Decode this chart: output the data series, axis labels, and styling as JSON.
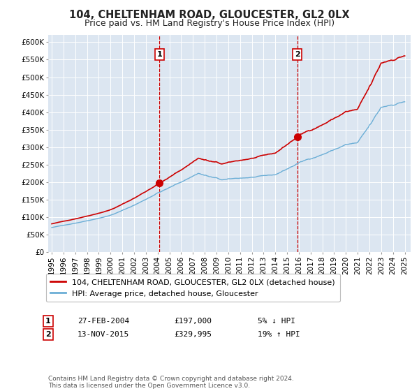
{
  "title": "104, CHELTENHAM ROAD, GLOUCESTER, GL2 0LX",
  "subtitle": "Price paid vs. HM Land Registry's House Price Index (HPI)",
  "ylim": [
    0,
    620000
  ],
  "yticks": [
    0,
    50000,
    100000,
    150000,
    200000,
    250000,
    300000,
    350000,
    400000,
    450000,
    500000,
    550000,
    600000
  ],
  "ytick_labels": [
    "£0",
    "£50K",
    "£100K",
    "£150K",
    "£200K",
    "£250K",
    "£300K",
    "£350K",
    "£400K",
    "£450K",
    "£500K",
    "£550K",
    "£600K"
  ],
  "xlim_start": 1994.7,
  "xlim_end": 2025.5,
  "xtick_years": [
    1995,
    1996,
    1997,
    1998,
    1999,
    2000,
    2001,
    2002,
    2003,
    2004,
    2005,
    2006,
    2007,
    2008,
    2009,
    2010,
    2011,
    2012,
    2013,
    2014,
    2015,
    2016,
    2017,
    2018,
    2019,
    2020,
    2021,
    2022,
    2023,
    2024,
    2025
  ],
  "background_color": "#ffffff",
  "chart_bg_color": "#dce6f1",
  "grid_color": "#ffffff",
  "sale1_x": 2004.15,
  "sale1_y": 197000,
  "sale1_label": "1",
  "sale2_x": 2015.87,
  "sale2_y": 329995,
  "sale2_label": "2",
  "vline_color": "#cc0000",
  "sale_marker_color": "#cc0000",
  "hpi_line_color": "#6baed6",
  "price_line_color": "#cc0000",
  "legend_label_price": "104, CHELTENHAM ROAD, GLOUCESTER, GL2 0LX (detached house)",
  "legend_label_hpi": "HPI: Average price, detached house, Gloucester",
  "annotation1_date": "27-FEB-2004",
  "annotation1_price": "£197,000",
  "annotation1_hpi": "5% ↓ HPI",
  "annotation2_date": "13-NOV-2015",
  "annotation2_price": "£329,995",
  "annotation2_hpi": "19% ↑ HPI",
  "footnote": "Contains HM Land Registry data © Crown copyright and database right 2024.\nThis data is licensed under the Open Government Licence v3.0.",
  "title_fontsize": 10.5,
  "subtitle_fontsize": 9,
  "tick_fontsize": 7.5,
  "legend_fontsize": 8,
  "annotation_fontsize": 8,
  "footnote_fontsize": 6.5
}
